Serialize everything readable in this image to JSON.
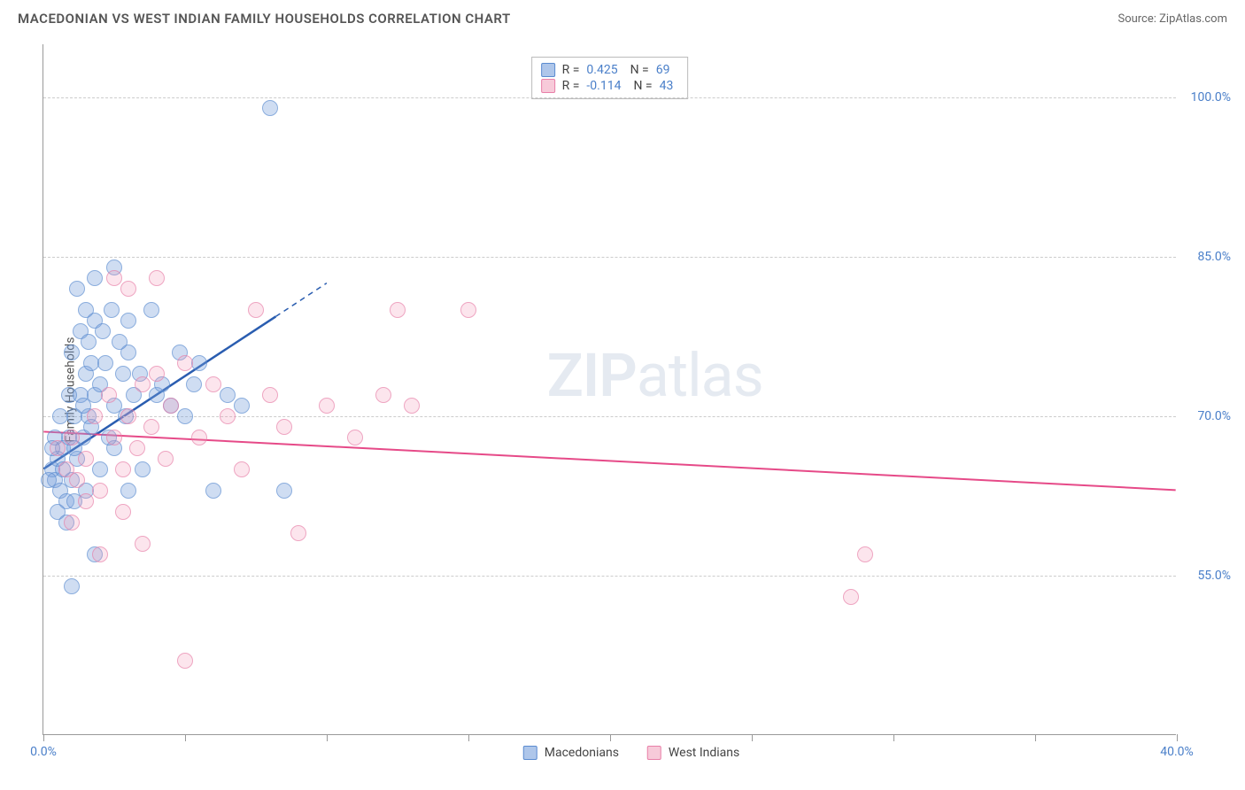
{
  "header": {
    "title": "MACEDONIAN VS WEST INDIAN FAMILY HOUSEHOLDS CORRELATION CHART",
    "source_label": "Source: ",
    "source_name": "ZipAtlas.com"
  },
  "chart": {
    "type": "scatter",
    "y_label": "Family Households",
    "xlim": [
      0,
      40
    ],
    "ylim": [
      40,
      105
    ],
    "x_ticks": [
      0,
      5,
      10,
      15,
      20,
      25,
      30,
      35,
      40
    ],
    "x_tick_labels": {
      "0": "0.0%",
      "40": "40.0%"
    },
    "y_ticks": [
      55,
      70,
      85,
      100
    ],
    "y_tick_labels": {
      "55": "55.0%",
      "70": "70.0%",
      "85": "85.0%",
      "100": "100.0%"
    },
    "background_color": "#ffffff",
    "grid_color": "#cccccc",
    "axis_color": "#999999",
    "tick_label_color": "#4a7fc9",
    "watermark_text_bold": "ZIP",
    "watermark_text_rest": "atlas",
    "series": [
      {
        "name": "Macedonians",
        "color_fill": "rgba(120,160,220,0.5)",
        "color_stroke": "#5a8bd0",
        "marker_size": 18,
        "R": "0.425",
        "N": "69",
        "trend": {
          "x1": 0,
          "y1": 65,
          "x2": 10,
          "y2": 82.5,
          "solid_until_x": 8.2,
          "color": "#2a5db0",
          "width": 2.5
        },
        "points": [
          [
            0.3,
            65
          ],
          [
            0.4,
            64
          ],
          [
            0.5,
            66
          ],
          [
            0.6,
            63
          ],
          [
            0.7,
            67
          ],
          [
            0.8,
            62
          ],
          [
            0.9,
            68
          ],
          [
            1.0,
            64
          ],
          [
            1.1,
            70
          ],
          [
            1.2,
            66
          ],
          [
            1.3,
            72
          ],
          [
            1.4,
            68
          ],
          [
            1.5,
            74
          ],
          [
            1.6,
            70
          ],
          [
            1.7,
            75
          ],
          [
            1.8,
            72
          ],
          [
            1.0,
            76
          ],
          [
            1.3,
            78
          ],
          [
            1.6,
            77
          ],
          [
            2.0,
            73
          ],
          [
            2.2,
            75
          ],
          [
            2.5,
            71
          ],
          [
            2.8,
            74
          ],
          [
            3.0,
            76
          ],
          [
            3.2,
            72
          ],
          [
            1.5,
            80
          ],
          [
            1.8,
            79
          ],
          [
            2.1,
            78
          ],
          [
            2.4,
            80
          ],
          [
            2.7,
            77
          ],
          [
            3.0,
            79
          ],
          [
            1.2,
            82
          ],
          [
            1.8,
            83
          ],
          [
            2.5,
            84
          ],
          [
            0.5,
            61
          ],
          [
            0.8,
            60
          ],
          [
            1.1,
            62
          ],
          [
            1.5,
            63
          ],
          [
            2.0,
            65
          ],
          [
            2.5,
            67
          ],
          [
            3.0,
            63
          ],
          [
            3.5,
            65
          ],
          [
            4.0,
            72
          ],
          [
            4.5,
            71
          ],
          [
            5.0,
            70
          ],
          [
            5.5,
            75
          ],
          [
            6.0,
            63
          ],
          [
            6.5,
            72
          ],
          [
            7.0,
            71
          ],
          [
            8.0,
            99
          ],
          [
            8.5,
            63
          ],
          [
            3.8,
            80
          ],
          [
            4.2,
            73
          ],
          [
            1.0,
            54
          ],
          [
            1.8,
            57
          ],
          [
            0.4,
            68
          ],
          [
            0.6,
            70
          ],
          [
            0.9,
            72
          ],
          [
            1.4,
            71
          ],
          [
            1.7,
            69
          ],
          [
            2.3,
            68
          ],
          [
            2.9,
            70
          ],
          [
            3.4,
            74
          ],
          [
            4.8,
            76
          ],
          [
            5.3,
            73
          ],
          [
            0.2,
            64
          ],
          [
            0.3,
            67
          ],
          [
            0.7,
            65
          ],
          [
            1.1,
            67
          ]
        ]
      },
      {
        "name": "West Indians",
        "color_fill": "rgba(240,150,180,0.35)",
        "color_stroke": "#e87fa8",
        "marker_size": 18,
        "R": "-0.114",
        "N": "43",
        "trend": {
          "x1": 0,
          "y1": 68.5,
          "x2": 40,
          "y2": 63,
          "solid_until_x": 40,
          "color": "#e64a88",
          "width": 2
        },
        "points": [
          [
            0.5,
            67
          ],
          [
            0.8,
            65
          ],
          [
            1.0,
            68
          ],
          [
            1.2,
            64
          ],
          [
            1.5,
            66
          ],
          [
            1.8,
            70
          ],
          [
            2.0,
            63
          ],
          [
            2.3,
            72
          ],
          [
            2.5,
            68
          ],
          [
            2.8,
            65
          ],
          [
            3.0,
            70
          ],
          [
            3.3,
            67
          ],
          [
            3.5,
            73
          ],
          [
            3.8,
            69
          ],
          [
            4.0,
            74
          ],
          [
            4.3,
            66
          ],
          [
            4.5,
            71
          ],
          [
            5.0,
            75
          ],
          [
            5.5,
            68
          ],
          [
            6.0,
            73
          ],
          [
            6.5,
            70
          ],
          [
            7.0,
            65
          ],
          [
            7.5,
            80
          ],
          [
            8.0,
            72
          ],
          [
            8.5,
            69
          ],
          [
            9.0,
            59
          ],
          [
            10.0,
            71
          ],
          [
            11.0,
            68
          ],
          [
            12.0,
            72
          ],
          [
            12.5,
            80
          ],
          [
            13.0,
            71
          ],
          [
            15.0,
            80
          ],
          [
            5.0,
            47
          ],
          [
            2.0,
            57
          ],
          [
            2.5,
            83
          ],
          [
            3.0,
            82
          ],
          [
            4.0,
            83
          ],
          [
            29.0,
            57
          ],
          [
            28.5,
            53
          ],
          [
            1.0,
            60
          ],
          [
            1.5,
            62
          ],
          [
            2.8,
            61
          ],
          [
            3.5,
            58
          ]
        ]
      }
    ],
    "correlation_box": {
      "rows": [
        {
          "swatch": "blue",
          "R_label": "R =",
          "R_val": "0.425",
          "N_label": "N =",
          "N_val": "69"
        },
        {
          "swatch": "pink",
          "R_label": "R =",
          "R_val": "-0.114",
          "N_label": "N =",
          "N_val": "43"
        }
      ]
    },
    "legend": {
      "items": [
        {
          "swatch": "blue",
          "label": "Macedonians"
        },
        {
          "swatch": "pink",
          "label": "West Indians"
        }
      ]
    }
  }
}
